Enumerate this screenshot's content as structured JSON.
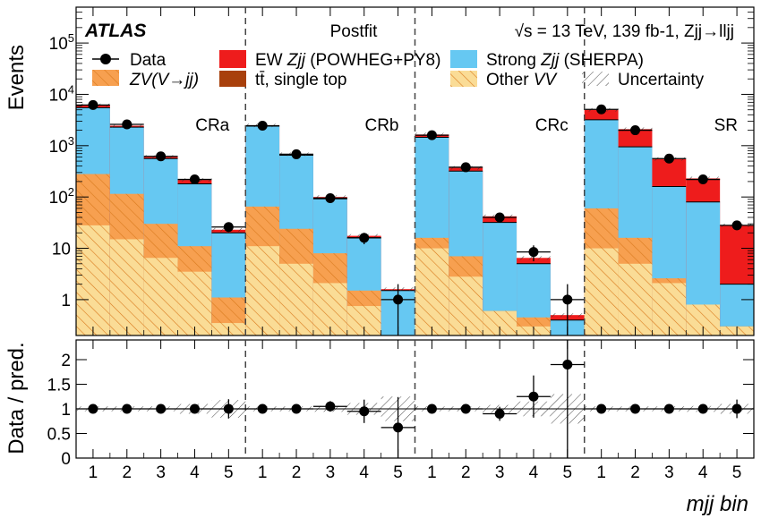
{
  "chart_data": [
    {
      "type": "bar",
      "subtype": "stacked-histogram",
      "panel": "main",
      "ylabel": "Events",
      "yscale": "log",
      "ylim": [
        0.2,
        500000
      ],
      "ytick_labels": [
        "1",
        "10",
        "10^2",
        "10^3",
        "10^4",
        "10^5"
      ],
      "ytick_values": [
        1,
        10,
        100,
        1000,
        10000,
        100000
      ],
      "regions": [
        "CRa",
        "CRb",
        "CRc",
        "SR"
      ],
      "bins_per_region": 5,
      "x_tick_labels": [
        "1",
        "2",
        "3",
        "4",
        "5"
      ],
      "annotations": {
        "experiment": "ATLAS",
        "fit_label": "Postfit",
        "energy_lumi": "√s = 13 TeV, 139 fb-1, Zjj→lljj"
      },
      "legend": [
        {
          "key": "data",
          "label": "Data",
          "marker": "point"
        },
        {
          "key": "ew",
          "label": "EW Zjj (POWHEG+PY8)",
          "color": "#ee1c1c"
        },
        {
          "key": "strong",
          "label": "Strong Zjj (SHERPA)",
          "color": "#66c8f2"
        },
        {
          "key": "zv",
          "label": "ZV(V→jj)",
          "color": "#f7a050",
          "hatch": true
        },
        {
          "key": "top",
          "label": "tt̄, single top",
          "color": "#a8400c"
        },
        {
          "key": "othervv",
          "label": "Other VV",
          "color": "#fadc96",
          "hatch": true
        },
        {
          "key": "unc",
          "label": "Uncertainty",
          "hatch": true
        }
      ],
      "legend_texts": {
        "data": "Data",
        "ew_a": "EW ",
        "ew_b": "Zjj",
        "ew_c": " (POWHEG+PY8)",
        "strong_a": "Strong ",
        "strong_b": "Zjj",
        "strong_c": " (SHERPA)",
        "zv": "ZV(V→jj)",
        "top": "tt̄, single top",
        "othervv_a": "Other ",
        "othervv_b": "VV",
        "unc": "Uncertainty"
      },
      "stack_order": [
        "othervv",
        "zv",
        "top",
        "strong",
        "ew"
      ],
      "cumulative_totals": {
        "othervv": [
          [
            28,
            15,
            6.5,
            3.5,
            0.35
          ],
          [
            11,
            5,
            2.1,
            0.75,
            0.1
          ],
          [
            10,
            2.8,
            0.6,
            0.3,
            0.1
          ],
          [
            10,
            5,
            2.1,
            0.8,
            0.3
          ]
        ],
        "zv": [
          [
            280,
            115,
            30,
            11,
            1.1
          ],
          [
            65,
            24,
            8,
            1.5,
            0.1
          ],
          [
            16,
            7,
            0.6,
            0.45,
            0.1
          ],
          [
            60,
            16,
            2.6,
            0.8,
            0.3
          ]
        ],
        "top": [
          [
            125,
            48,
            12,
            5.5,
            0.62
          ],
          [
            27,
            8,
            2.4,
            0.75,
            0.1
          ],
          [
            8,
            3.2,
            0.6,
            0.3,
            0.1
          ],
          [
            25,
            5.8,
            1.0,
            0.5,
            0.3
          ]
        ],
        "strong": [
          [
            5500,
            2300,
            560,
            180,
            20
          ],
          [
            2400,
            650,
            92,
            16,
            1.5
          ],
          [
            1450,
            320,
            32,
            5,
            0.4
          ],
          [
            3200,
            950,
            160,
            80,
            2
          ]
        ],
        "ew": [
          [
            6100,
            2450,
            605,
            215,
            23
          ],
          [
            2480,
            680,
            100,
            17.5,
            1.6
          ],
          [
            1650,
            370,
            42,
            6.5,
            0.5
          ],
          [
            5000,
            2100,
            550,
            230,
            28
          ]
        ]
      },
      "data": [
        [
          6200,
          2600,
          620,
          220,
          26
        ],
        [
          2450,
          680,
          95,
          16,
          1
        ],
        [
          1600,
          380,
          40,
          8.5,
          1
        ],
        [
          5100,
          2000,
          560,
          220,
          28
        ]
      ]
    },
    {
      "type": "scatter",
      "panel": "ratio",
      "ylabel": "Data / pred.",
      "xlabel": "mjj bin",
      "ylim": [
        0,
        2.4
      ],
      "ytick_labels": [
        "0",
        "0.5",
        "1",
        "1.5",
        "2"
      ],
      "ytick_values": [
        0,
        0.5,
        1,
        1.5,
        2
      ],
      "ratio": [
        [
          1.0,
          1.0,
          1.0,
          1.0,
          1.0
        ],
        [
          1.0,
          1.0,
          1.05,
          0.95,
          0.62
        ],
        [
          1.0,
          1.0,
          0.9,
          1.25,
          1.9
        ],
        [
          1.0,
          1.0,
          1.0,
          1.0,
          1.0
        ]
      ],
      "uncertainty_band": [
        [
          0.05,
          0.05,
          0.05,
          0.1,
          0.18
        ],
        [
          0.05,
          0.05,
          0.06,
          0.12,
          0.25
        ],
        [
          0.05,
          0.05,
          0.08,
          0.15,
          0.3
        ],
        [
          0.05,
          0.05,
          0.05,
          0.06,
          0.1
        ]
      ]
    }
  ]
}
